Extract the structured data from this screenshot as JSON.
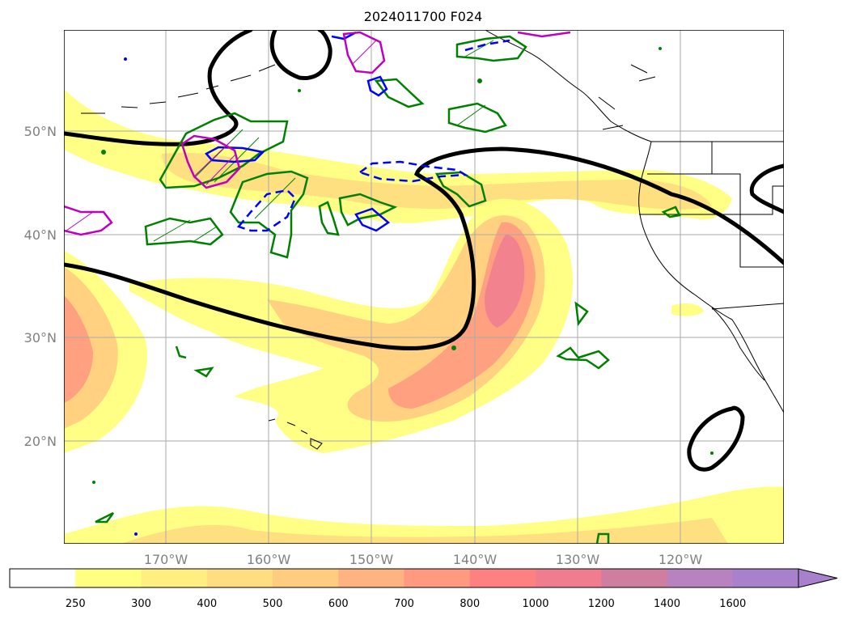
{
  "title": "2024011700 F024",
  "map": {
    "lat_ticks": [
      {
        "value": 50,
        "label": "50°N"
      },
      {
        "value": 40,
        "label": "40°N"
      },
      {
        "value": 30,
        "label": "30°N"
      },
      {
        "value": 20,
        "label": "20°N"
      }
    ],
    "lon_ticks": [
      {
        "value": -170,
        "label": "170°W"
      },
      {
        "value": -160,
        "label": "160°W"
      },
      {
        "value": -150,
        "label": "150°W"
      },
      {
        "value": -140,
        "label": "140°W"
      },
      {
        "value": -130,
        "label": "130°W"
      },
      {
        "value": -120,
        "label": "120°W"
      }
    ],
    "extent": {
      "lon_min": -180,
      "lon_max": -110,
      "lat_min": 10,
      "lat_max": 60
    },
    "contour_colors": {
      "thick_line": "#000000",
      "green": "#008000",
      "blue": "#0000ff",
      "magenta": "#c000c0"
    }
  },
  "colorbar": {
    "levels": [
      "250",
      "300",
      "400",
      "500",
      "600",
      "700",
      "800",
      "1000",
      "1200",
      "1400",
      "1600"
    ],
    "colors": [
      "#ffffff",
      "#ffff80",
      "#ffee80",
      "#ffdd80",
      "#ffcc80",
      "#ffb380",
      "#ff9980",
      "#ff8080",
      "#f07c90",
      "#d07ea0",
      "#b882c0",
      "#a880cc"
    ],
    "extend": "max"
  }
}
